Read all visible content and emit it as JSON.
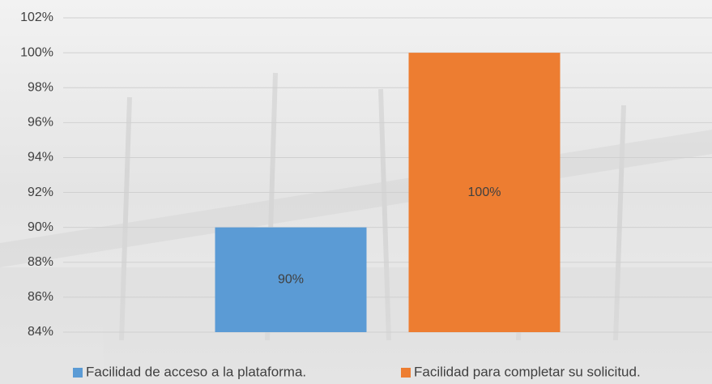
{
  "chart_data": {
    "type": "bar",
    "categories": [
      null
    ],
    "series": [
      {
        "name": "Facilidad de acceso a la plataforma.",
        "color": "#5b9bd5",
        "values": [
          90
        ],
        "value_labels": [
          "90%"
        ]
      },
      {
        "name": "Facilidad para completar su solicitud.",
        "color": "#ed7d31",
        "values": [
          100
        ],
        "value_labels": [
          "100%"
        ]
      }
    ],
    "ylim": [
      84,
      102
    ],
    "yticks": [
      {
        "value": 84,
        "label": "84%"
      },
      {
        "value": 86,
        "label": "86%"
      },
      {
        "value": 88,
        "label": "88%"
      },
      {
        "value": 90,
        "label": "90%"
      },
      {
        "value": 92,
        "label": "92%"
      },
      {
        "value": 94,
        "label": "94%"
      },
      {
        "value": 96,
        "label": "96%"
      },
      {
        "value": 98,
        "label": "98%"
      },
      {
        "value": 100,
        "label": "100%"
      },
      {
        "value": 102,
        "label": "102%"
      }
    ],
    "grid": true,
    "legend": "bottom"
  }
}
